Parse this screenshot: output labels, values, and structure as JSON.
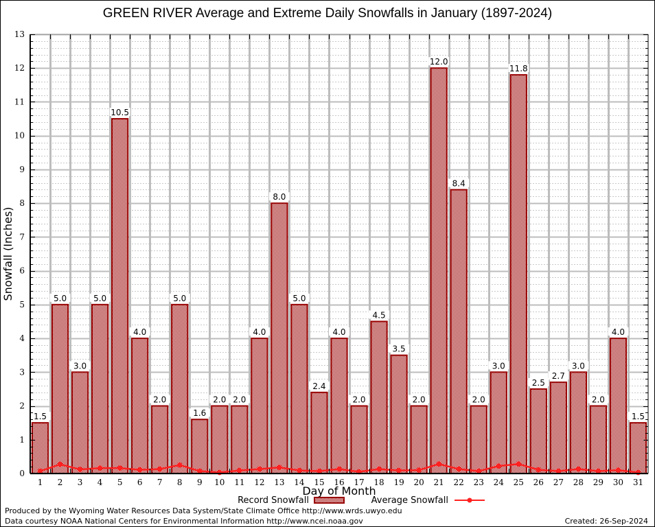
{
  "chart_data": {
    "type": "bar",
    "title": "GREEN RIVER Average and Extreme Daily Snowfalls in January (1897-2024)",
    "xlabel": "Day of Month",
    "ylabel": "Snowfall (Inches)",
    "ylim": [
      0,
      13
    ],
    "yticks": [
      0,
      1,
      2,
      3,
      4,
      5,
      6,
      7,
      8,
      9,
      10,
      11,
      12,
      13
    ],
    "grid": true,
    "categories": [
      "1",
      "2",
      "3",
      "4",
      "5",
      "6",
      "7",
      "8",
      "9",
      "10",
      "11",
      "12",
      "13",
      "14",
      "15",
      "16",
      "17",
      "18",
      "19",
      "20",
      "21",
      "22",
      "23",
      "24",
      "25",
      "26",
      "27",
      "28",
      "29",
      "30",
      "31"
    ],
    "series": [
      {
        "name": "Record Snowfall",
        "type": "bar",
        "color": "#990000",
        "values": [
          1.5,
          5.0,
          3.0,
          5.0,
          10.5,
          4.0,
          2.0,
          5.0,
          1.6,
          2.0,
          2.0,
          4.0,
          8.0,
          5.0,
          2.4,
          4.0,
          2.0,
          4.5,
          3.5,
          2.0,
          12.0,
          8.4,
          2.0,
          3.0,
          11.8,
          2.5,
          2.7,
          3.0,
          2.0,
          4.0,
          1.5
        ],
        "labels": [
          "1.5",
          "5.0",
          "3.0",
          "5.0",
          "10.5",
          "4.0",
          "2.0",
          "5.0",
          "1.6",
          "2.0",
          "2.0",
          "4.0",
          "8.0",
          "5.0",
          "2.4",
          "4.0",
          "2.0",
          "4.5",
          "3.5",
          "2.0",
          "12.0",
          "8.4",
          "2.0",
          "3.0",
          "11.8",
          "2.5",
          "2.7",
          "3.0",
          "2.0",
          "4.0",
          "1.5"
        ]
      },
      {
        "name": "Average Snowfall",
        "type": "line",
        "color": "#ff2020",
        "values": [
          0.07,
          0.27,
          0.12,
          0.16,
          0.16,
          0.11,
          0.13,
          0.25,
          0.07,
          0.03,
          0.09,
          0.13,
          0.18,
          0.09,
          0.07,
          0.13,
          0.05,
          0.13,
          0.09,
          0.1,
          0.28,
          0.13,
          0.07,
          0.22,
          0.28,
          0.11,
          0.07,
          0.13,
          0.07,
          0.1,
          0.03
        ]
      }
    ],
    "legend": {
      "position": "bottom-center",
      "record_label": "Record Snowfall",
      "average_label": "Average Snowfall"
    }
  },
  "footer": {
    "producer": "Produced by the Wyoming Water Resources Data System/State Climate Office http://www.wrds.uwyo.edu",
    "source": "Data courtesy NOAA National Centers for Environmental Information http://www.ncei.noaa.gov",
    "created": "Created: 26-Sep-2024"
  }
}
